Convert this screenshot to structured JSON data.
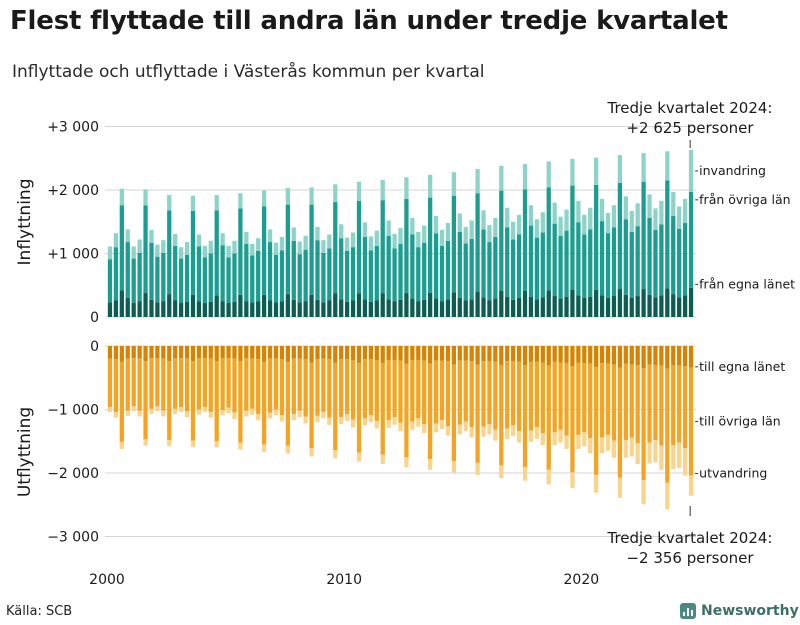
{
  "header": {
    "title": "Flest flyttade till andra län under tredje kvartalet",
    "subtitle": "Inflyttade och utflyttade i Västerås kommun per kvartal"
  },
  "footer": {
    "source": "Källa: SCB",
    "brand": "Newsworthy"
  },
  "colors": {
    "in_invandring": "#8dd3c7",
    "in_ovriga": "#1a9e8f",
    "in_egna": "#0b5e52",
    "out_egna": "#d98200",
    "out_ovriga": "#f5a320",
    "out_utvandring": "#fbd48b",
    "grid": "#d4d4d4"
  },
  "chart_data": [
    {
      "type": "bar",
      "stacked": true,
      "panel": "top",
      "ylabel": "Inflyttning",
      "ylim": [
        0,
        3000
      ],
      "yticks": [
        0,
        1000,
        2000,
        3000
      ],
      "ytick_labels": [
        "0",
        "+1 000",
        "+2 000",
        "+3 000"
      ],
      "xticks": [
        2000,
        2010,
        2020
      ],
      "xtick_labels": [
        "2000",
        "2010",
        "2020"
      ],
      "x_start_year": 2000,
      "categories_note": "Quarters from Q1 2000 to Q3 2024",
      "series": [
        {
          "name": "från egna länet",
          "values": [
            230,
            260,
            420,
            300,
            220,
            250,
            380,
            270,
            230,
            250,
            360,
            260,
            220,
            240,
            350,
            250,
            220,
            240,
            340,
            250,
            220,
            240,
            350,
            250,
            230,
            250,
            350,
            260,
            230,
            250,
            360,
            270,
            230,
            250,
            350,
            270,
            230,
            260,
            370,
            280,
            240,
            260,
            370,
            280,
            240,
            260,
            370,
            280,
            250,
            270,
            380,
            290,
            250,
            270,
            380,
            290,
            250,
            280,
            390,
            300,
            260,
            280,
            400,
            310,
            260,
            290,
            410,
            320,
            270,
            300,
            410,
            320,
            280,
            310,
            420,
            330,
            290,
            320,
            430,
            340,
            300,
            320,
            430,
            340,
            300,
            330,
            440,
            350,
            300,
            330,
            440,
            350,
            310,
            340,
            450,
            360,
            310,
            340,
            460
          ]
        },
        {
          "name": "från övriga län",
          "values": [
            680,
            840,
            1340,
            880,
            700,
            760,
            1380,
            900,
            720,
            760,
            1320,
            860,
            700,
            740,
            1320,
            860,
            720,
            760,
            1340,
            880,
            720,
            760,
            1360,
            900,
            740,
            790,
            1390,
            920,
            750,
            800,
            1410,
            930,
            760,
            810,
            1420,
            940,
            780,
            820,
            1440,
            960,
            800,
            840,
            1460,
            980,
            810,
            860,
            1470,
            1000,
            830,
            880,
            1480,
            1010,
            850,
            900,
            1500,
            1030,
            870,
            920,
            1520,
            1040,
            900,
            950,
            1550,
            1070,
            920,
            970,
            1580,
            1090,
            950,
            1000,
            1600,
            1120,
            970,
            1020,
            1620,
            1140,
            990,
            1040,
            1640,
            1150,
            1000,
            1060,
            1650,
            1170,
            1020,
            1080,
            1670,
            1190,
            1040,
            1100,
            1690,
            1210,
            1060,
            1120,
            1700,
            1230,
            1080,
            1140,
            1510
          ]
        },
        {
          "name": "invandring",
          "values": [
            200,
            220,
            260,
            200,
            190,
            210,
            250,
            200,
            190,
            200,
            240,
            190,
            180,
            200,
            240,
            190,
            180,
            200,
            240,
            190,
            180,
            200,
            240,
            190,
            180,
            200,
            250,
            200,
            190,
            210,
            260,
            210,
            200,
            220,
            270,
            210,
            200,
            220,
            280,
            220,
            210,
            230,
            300,
            230,
            220,
            240,
            320,
            240,
            230,
            250,
            340,
            260,
            240,
            270,
            360,
            270,
            250,
            280,
            370,
            290,
            260,
            290,
            380,
            300,
            270,
            300,
            390,
            310,
            280,
            310,
            400,
            320,
            290,
            320,
            410,
            330,
            300,
            330,
            420,
            340,
            310,
            340,
            430,
            350,
            320,
            350,
            440,
            360,
            330,
            360,
            450,
            370,
            340,
            370,
            460,
            380,
            350,
            380,
            660
          ]
        }
      ],
      "annotation": {
        "line1": "Tredje kvartalet 2024:",
        "line2": "+2 625 personer"
      }
    },
    {
      "type": "bar",
      "stacked": true,
      "panel": "bottom",
      "ylabel": "Utflyttning",
      "ylim": [
        -3000,
        0
      ],
      "yticks": [
        0,
        -1000,
        -2000,
        -3000
      ],
      "ytick_labels": [
        "0",
        "−1 000",
        "−2 000",
        "−3 000"
      ],
      "xticks": [
        2000,
        2010,
        2020
      ],
      "xtick_labels": [
        "2000",
        "2010",
        "2020"
      ],
      "x_start_year": 2000,
      "categories_note": "Quarters from Q1 2000 to Q3 2024",
      "series": [
        {
          "name": "till egna länet",
          "values": [
            -200,
            -210,
            -250,
            -200,
            -190,
            -200,
            -240,
            -190,
            -190,
            -200,
            -240,
            -190,
            -190,
            -200,
            -240,
            -190,
            -190,
            -200,
            -240,
            -190,
            -190,
            -200,
            -240,
            -190,
            -200,
            -210,
            -250,
            -200,
            -200,
            -210,
            -250,
            -200,
            -200,
            -210,
            -260,
            -210,
            -200,
            -210,
            -260,
            -210,
            -210,
            -220,
            -270,
            -210,
            -210,
            -220,
            -270,
            -220,
            -220,
            -230,
            -280,
            -220,
            -220,
            -230,
            -280,
            -230,
            -230,
            -240,
            -290,
            -230,
            -230,
            -240,
            -290,
            -240,
            -240,
            -250,
            -300,
            -240,
            -240,
            -250,
            -300,
            -250,
            -250,
            -260,
            -310,
            -250,
            -260,
            -270,
            -320,
            -260,
            -270,
            -280,
            -330,
            -270,
            -280,
            -290,
            -340,
            -280,
            -290,
            -300,
            -350,
            -290,
            -300,
            -310,
            -360,
            -300,
            -310,
            -320,
            -340
          ]
        },
        {
          "name": "till övriga län",
          "values": [
            -760,
            -830,
            -1260,
            -820,
            -760,
            -820,
            -1230,
            -800,
            -760,
            -820,
            -1240,
            -800,
            -770,
            -830,
            -1250,
            -810,
            -770,
            -840,
            -1260,
            -820,
            -780,
            -850,
            -1280,
            -830,
            -790,
            -860,
            -1300,
            -850,
            -800,
            -880,
            -1320,
            -870,
            -820,
            -900,
            -1350,
            -890,
            -840,
            -920,
            -1380,
            -910,
            -860,
            -940,
            -1410,
            -930,
            -880,
            -960,
            -1440,
            -950,
            -900,
            -980,
            -1470,
            -970,
            -920,
            -1000,
            -1500,
            -990,
            -940,
            -1020,
            -1520,
            -1010,
            -960,
            -1040,
            -1550,
            -1030,
            -990,
            -1070,
            -1580,
            -1060,
            -1010,
            -1090,
            -1610,
            -1080,
            -1030,
            -1110,
            -1640,
            -1110,
            -1060,
            -1140,
            -1670,
            -1140,
            -1090,
            -1170,
            -1700,
            -1170,
            -1120,
            -1200,
            -1730,
            -1200,
            -1150,
            -1230,
            -1760,
            -1230,
            -1180,
            -1260,
            -1790,
            -1260,
            -1210,
            -1290,
            -1700
          ]
        },
        {
          "name": "utvandring",
          "values": [
            -80,
            -90,
            -110,
            -80,
            -80,
            -90,
            -100,
            -80,
            -80,
            -90,
            -100,
            -80,
            -80,
            -90,
            -100,
            -80,
            -80,
            -90,
            -100,
            -80,
            -90,
            -100,
            -110,
            -90,
            -90,
            -100,
            -120,
            -90,
            -90,
            -100,
            -120,
            -100,
            -100,
            -110,
            -130,
            -100,
            -100,
            -110,
            -130,
            -110,
            -110,
            -120,
            -140,
            -110,
            -110,
            -120,
            -150,
            -120,
            -120,
            -130,
            -160,
            -130,
            -130,
            -140,
            -170,
            -140,
            -140,
            -150,
            -180,
            -150,
            -150,
            -160,
            -190,
            -160,
            -160,
            -170,
            -200,
            -170,
            -170,
            -180,
            -210,
            -180,
            -180,
            -190,
            -230,
            -200,
            -200,
            -210,
            -250,
            -220,
            -220,
            -240,
            -280,
            -250,
            -250,
            -270,
            -320,
            -280,
            -300,
            -330,
            -380,
            -330,
            -350,
            -380,
            -420,
            -380,
            -400,
            -430,
            -316
          ]
        }
      ],
      "annotation": {
        "line1": "Tredje kvartalet 2024:",
        "line2": "−2 356 personer"
      }
    }
  ]
}
